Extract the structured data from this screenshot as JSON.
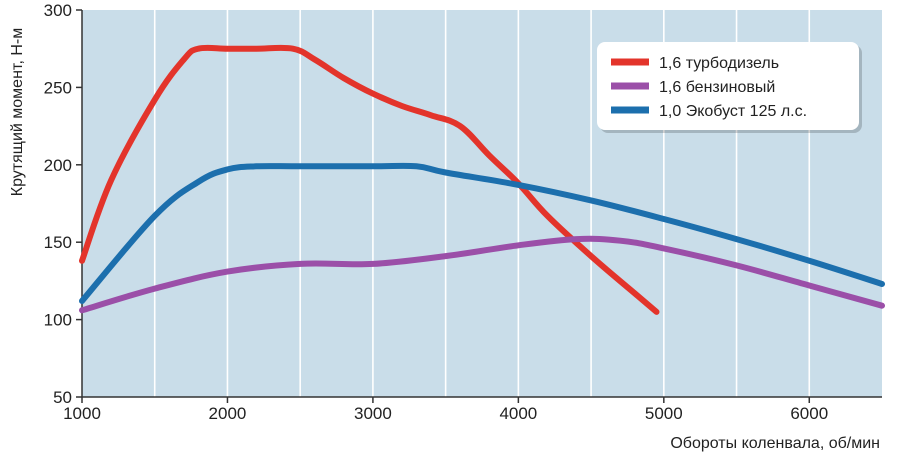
{
  "chart_data": {
    "type": "line",
    "xlabel": "Обороты коленвала, об/мин",
    "ylabel": "Крутящий момент, Н-м",
    "xlim": [
      1000,
      6500
    ],
    "ylim": [
      50,
      300
    ],
    "x_ticks": [
      "1000",
      "2000",
      "3000",
      "4000",
      "5000",
      "6000"
    ],
    "x_tick_values": [
      1000,
      2000,
      3000,
      4000,
      5000,
      6000
    ],
    "y_ticks": [
      "50",
      "100",
      "150",
      "200",
      "250",
      "300"
    ],
    "y_tick_values": [
      50,
      100,
      150,
      200,
      250,
      300
    ],
    "grid": "vertical",
    "legend_position": "top-right",
    "background_color": "#c9dde9",
    "grid_color": "#ffffff",
    "series": [
      {
        "name": "1,6 турбодизель",
        "color": "#e3342b",
        "x": [
          1000,
          1200,
          1500,
          1700,
          1800,
          2000,
          2200,
          2450,
          2600,
          2800,
          3000,
          3200,
          3400,
          3600,
          3800,
          4000,
          4200,
          4500,
          4800,
          4950
        ],
        "y": [
          138,
          190,
          242,
          268,
          275,
          275,
          275,
          275,
          268,
          256,
          246,
          238,
          232,
          225,
          206,
          188,
          167,
          141,
          117,
          105
        ]
      },
      {
        "name": "1,6 бензиновый",
        "color": "#9b4fa8",
        "x": [
          1000,
          1500,
          2000,
          2500,
          3000,
          3500,
          4000,
          4400,
          4700,
          5000,
          5500,
          6000,
          6500
        ],
        "y": [
          106,
          120,
          131,
          136,
          136,
          141,
          148,
          152,
          151,
          146,
          135,
          122,
          109
        ]
      },
      {
        "name": "1,0 Экобуст 125 л.с.",
        "color": "#1c6fad",
        "x": [
          1000,
          1500,
          1800,
          2000,
          2200,
          2500,
          3000,
          3300,
          3500,
          4000,
          4500,
          5000,
          5500,
          6000,
          6500
        ],
        "y": [
          112,
          167,
          189,
          197,
          199,
          199,
          199,
          199,
          195,
          187,
          177,
          165,
          152,
          138,
          123
        ]
      }
    ]
  }
}
